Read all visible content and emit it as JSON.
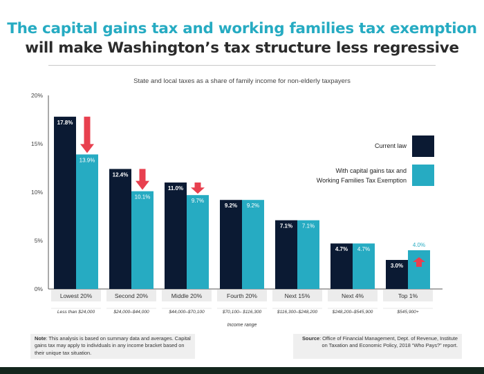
{
  "title": {
    "line1": "The capital gains tax and working families tax exemption",
    "line2": "will make Washington’s tax structure less regressive"
  },
  "chart_data": {
    "type": "bar",
    "title": "State and local taxes as a share of family income for non-elderly taxpayers",
    "xlabel": "Income range",
    "ylabel": "",
    "ylim": [
      0,
      20
    ],
    "yticks": [
      0,
      5,
      10,
      15,
      20
    ],
    "ytick_labels": [
      "0%",
      "5%",
      "10%",
      "15%",
      "20%"
    ],
    "categories": [
      "Lowest 20%",
      "Second 20%",
      "Middle 20%",
      "Fourth 20%",
      "Next 15%",
      "Next 4%",
      "Top 1%"
    ],
    "income_ranges": [
      "Less than $24,000",
      "$24,000–$44,000",
      "$44,000–$70,100",
      "$70,100– $116,300",
      "$116,300–$248,200",
      "$248,200–$545,900",
      "$545,900+"
    ],
    "series": [
      {
        "name": "Current law",
        "color": "#0b1a33",
        "values": [
          17.8,
          12.4,
          11.0,
          9.2,
          7.1,
          4.7,
          3.0
        ],
        "labels": [
          "17.8%",
          "12.4%",
          "11.0%",
          "9.2%",
          "7.1%",
          "4.7%",
          "3.0%"
        ]
      },
      {
        "name": "With capital gains tax and Working Families Tax Exemption",
        "legend_lines": [
          "With capital gains tax and",
          "Working Families Tax Exemption"
        ],
        "color": "#26abc2",
        "values": [
          13.9,
          10.1,
          9.7,
          9.2,
          7.1,
          4.7,
          4.0
        ],
        "labels": [
          "13.9%",
          "10.1%",
          "9.7%",
          "9.2%",
          "7.1%",
          "4.7%",
          "4.0%"
        ]
      }
    ],
    "arrows": [
      {
        "category": "Lowest 20%",
        "direction": "down"
      },
      {
        "category": "Second 20%",
        "direction": "down"
      },
      {
        "category": "Middle 20%",
        "direction": "down"
      },
      {
        "category": "Top 1%",
        "direction": "up"
      }
    ],
    "arrow_color": "#e8404f",
    "legend_position": "right"
  },
  "note": {
    "label": "Note",
    "text": ": This analysis is based on summary data and averages. Capital gains tax may apply to individuals in any income bracket based on their unique tax situation."
  },
  "source": {
    "label": "Source",
    "text": ": Office of Financial Management, Dept. of Revenue, Institute on Taxation and Economic Policy, 2018 “Who Pays?” report."
  }
}
